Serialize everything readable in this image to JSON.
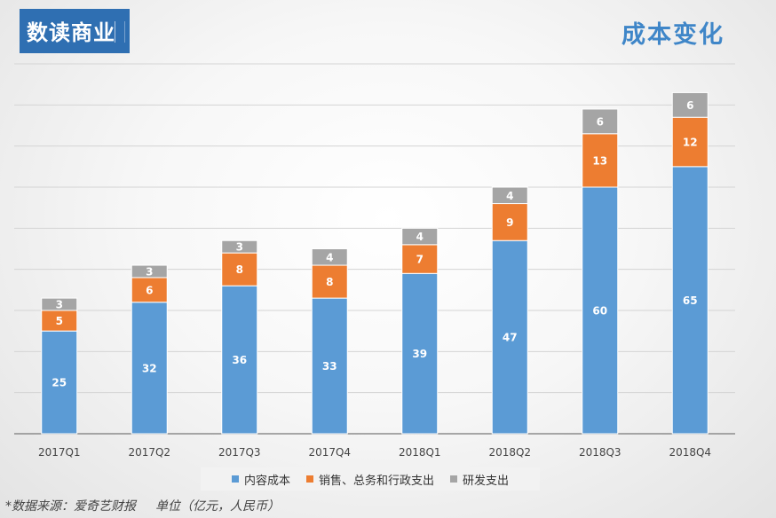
{
  "logo": {
    "text": "数读商业"
  },
  "title": "成本变化",
  "footnote": {
    "source": "*数据来源：爱奇艺财报",
    "unit": "单位（亿元，人民币）"
  },
  "colors": {
    "content": "#5b9bd5",
    "sales": "#ed7d31",
    "rd": "#a5a5a5",
    "logo_bg": "#2f6fb2",
    "title": "#3f86c8"
  },
  "chart_data": {
    "type": "bar",
    "stacked": true,
    "categories": [
      "2017Q1",
      "2017Q2",
      "2017Q3",
      "2017Q4",
      "2018Q1",
      "2018Q2",
      "2018Q3",
      "2018Q4"
    ],
    "series": [
      {
        "name": "内容成本",
        "values": [
          25,
          32,
          36,
          33,
          39,
          47,
          60,
          65
        ]
      },
      {
        "name": "销售、总务和行政支出",
        "values": [
          5,
          6,
          8,
          8,
          7,
          9,
          13,
          12
        ]
      },
      {
        "name": "研发支出",
        "values": [
          3,
          3,
          3,
          4,
          4,
          4,
          6,
          6
        ]
      }
    ],
    "title": "成本变化",
    "xlabel": "",
    "ylabel": "",
    "ylim": [
      0,
      90
    ],
    "grid": true,
    "legend": "bottom"
  }
}
